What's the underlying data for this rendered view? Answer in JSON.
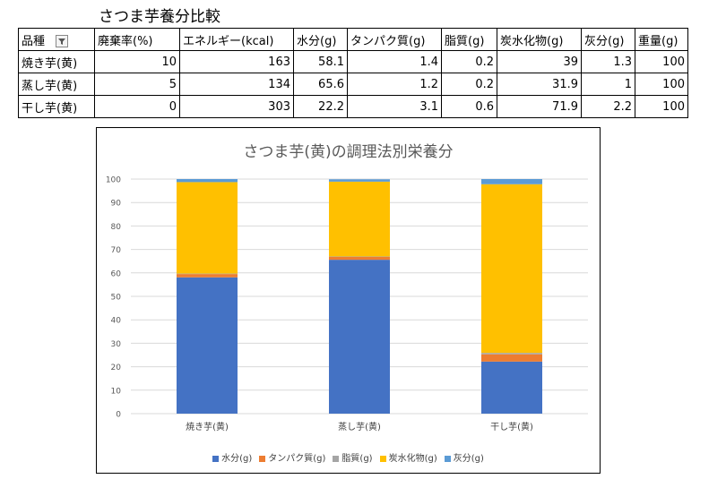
{
  "sheet": {
    "title": "さつま芋養分比較",
    "headers": [
      "品種",
      "廃棄率(%)",
      "エネルギー(kcal)",
      "水分(g)",
      "タンパク質(g)",
      "脂質(g)",
      "炭水化物(g)",
      "灰分(g)",
      "重量(g)"
    ],
    "rows": [
      [
        "焼き芋(黄)",
        "10",
        "163",
        "58.1",
        "1.4",
        "0.2",
        "39",
        "1.3",
        "100"
      ],
      [
        "蒸し芋(黄)",
        "5",
        "134",
        "65.6",
        "1.2",
        "0.2",
        "31.9",
        "1",
        "100"
      ],
      [
        "干し芋(黄)",
        "0",
        "303",
        "22.2",
        "3.1",
        "0.6",
        "71.9",
        "2.2",
        "100"
      ]
    ],
    "filter_icon": "filter-dropdown-icon"
  },
  "chart_data": {
    "type": "bar",
    "stacked": true,
    "title": "さつま芋(黄)の調理法別栄養分",
    "categories": [
      "焼き芋(黄)",
      "蒸し芋(黄)",
      "干し芋(黄)"
    ],
    "series": [
      {
        "name": "水分(g)",
        "values": [
          58.1,
          65.6,
          22.2
        ],
        "color": "#4472C4"
      },
      {
        "name": "タンパク質(g)",
        "values": [
          1.4,
          1.2,
          3.1
        ],
        "color": "#ED7D31"
      },
      {
        "name": "脂質(g)",
        "values": [
          0.2,
          0.2,
          0.6
        ],
        "color": "#A5A5A5"
      },
      {
        "name": "炭水化物(g)",
        "values": [
          39,
          31.9,
          71.9
        ],
        "color": "#FFC000"
      },
      {
        "name": "灰分(g)",
        "values": [
          1.3,
          1,
          2.2
        ],
        "color": "#5B9BD5"
      }
    ],
    "ylim": [
      0,
      100
    ],
    "yticks": [
      "0",
      "10",
      "20",
      "30",
      "40",
      "50",
      "60",
      "70",
      "80",
      "90",
      "100"
    ],
    "grid": true,
    "legend": "bottom"
  }
}
